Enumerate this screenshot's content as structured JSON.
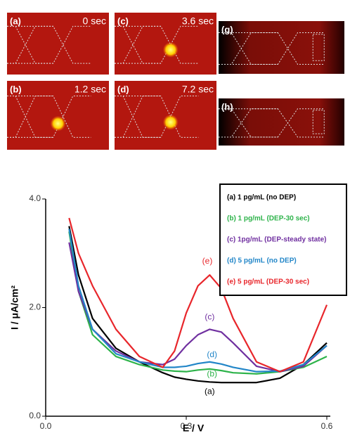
{
  "panels": [
    {
      "label": "(a)",
      "time": "0 sec"
    },
    {
      "label": "(b)",
      "time": "1.2 sec"
    },
    {
      "label": "(c)",
      "time": "3.6 sec"
    },
    {
      "label": "(d)",
      "time": "7.2 sec"
    },
    {
      "label": "(g)"
    },
    {
      "label": "(h)"
    }
  ],
  "chart_data": {
    "type": "line",
    "x_label": "E / V",
    "y_label": "I / μA/cm²",
    "x": [
      0.05,
      0.07,
      0.1,
      0.15,
      0.2,
      0.25,
      0.275,
      0.3,
      0.325,
      0.35,
      0.375,
      0.4,
      0.45,
      0.5,
      0.55,
      0.6
    ],
    "series": [
      {
        "name": "(a) 1 pg/mL (no DEP)",
        "label": "(a)",
        "color": "#000000",
        "values": [
          3.5,
          2.6,
          1.8,
          1.25,
          1.0,
          0.8,
          0.72,
          0.68,
          0.65,
          0.63,
          0.62,
          0.62,
          0.62,
          0.7,
          0.95,
          1.35
        ]
      },
      {
        "name": "(b) 1 pg/mL (DEP-30 sec)",
        "label": "(b)",
        "color": "#2db34a",
        "values": [
          3.4,
          2.3,
          1.5,
          1.1,
          0.95,
          0.85,
          0.83,
          0.82,
          0.85,
          0.87,
          0.84,
          0.8,
          0.78,
          0.82,
          0.9,
          1.1
        ]
      },
      {
        "name": "(c) 1pg/mL (DEP-steady state)",
        "label": "(c)",
        "color": "#7030a0",
        "values": [
          3.2,
          2.3,
          1.6,
          1.2,
          1.0,
          0.95,
          1.05,
          1.3,
          1.5,
          1.6,
          1.55,
          1.35,
          0.92,
          0.82,
          0.92,
          1.3
        ]
      },
      {
        "name": "(d) 5 pg/mL (no DEP)",
        "label": "(d)",
        "color": "#2286c8",
        "values": [
          3.45,
          2.4,
          1.6,
          1.15,
          1.0,
          0.9,
          0.9,
          0.92,
          0.97,
          1.0,
          0.96,
          0.9,
          0.82,
          0.83,
          0.95,
          1.3
        ]
      },
      {
        "name": "(e) 5 pg/mL (DEP-30 sec)",
        "label": "(e)",
        "color": "#e8262b",
        "values": [
          3.65,
          3.0,
          2.4,
          1.6,
          1.1,
          0.9,
          1.2,
          1.9,
          2.4,
          2.6,
          2.35,
          1.8,
          1.0,
          0.82,
          1.0,
          2.05
        ]
      }
    ],
    "xlim": [
      0,
      0.6
    ],
    "ylim": [
      0,
      4
    ],
    "xticks": [
      {
        "value": 0,
        "label": "0.0"
      },
      0.3,
      0.6
    ],
    "yticks": [
      {
        "value": 0,
        "label": "0.0"
      },
      {
        "value": 2,
        "label": "2.0"
      },
      {
        "value": 4,
        "label": "4.0"
      }
    ],
    "legend": "upper right"
  }
}
